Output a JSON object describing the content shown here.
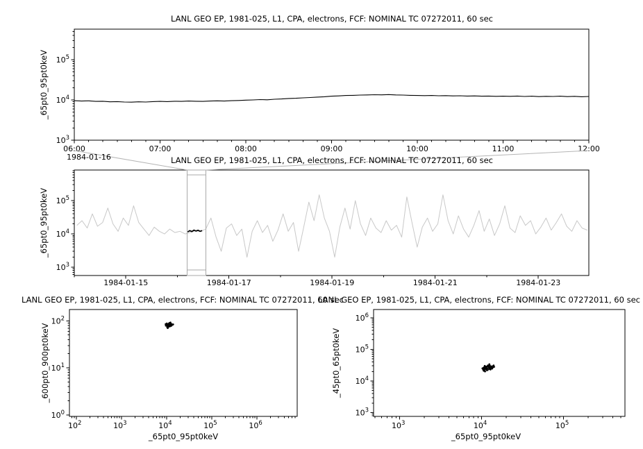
{
  "window": {
    "background": "#ffffff",
    "frame_color": "#000000"
  },
  "chart_data": [
    {
      "id": "top-timeseries",
      "type": "line",
      "title": "LANL GEO EP, 1981-025, L1, CPA, electrons, FCF: NOMINAL TC 07272011, 60 sec",
      "ylabel": "_65pt0_95pt0keV",
      "x_date_label": "1984-01-16",
      "x_tick_labels": [
        "06:00",
        "07:00",
        "08:00",
        "09:00",
        "10:00",
        "11:00",
        "12:00"
      ],
      "x_tick_values": [
        6,
        7,
        8,
        9,
        10,
        11,
        12
      ],
      "xlim": [
        6,
        12
      ],
      "ylog_range": [
        3,
        5.76
      ],
      "y_tick_exponents": [
        3,
        4,
        5
      ],
      "line_color": "#000000",
      "x_start": 6,
      "x_step": 0.0833333,
      "y": [
        9600,
        9400,
        9500,
        9200,
        9300,
        9000,
        9100,
        8900,
        8800,
        9000,
        8900,
        9100,
        9200,
        9100,
        9300,
        9200,
        9400,
        9300,
        9200,
        9400,
        9500,
        9400,
        9600,
        9700,
        9900,
        10000,
        10200,
        10100,
        10400,
        10600,
        10900,
        11000,
        11300,
        11500,
        11800,
        12000,
        12400,
        12600,
        12900,
        13000,
        13200,
        13300,
        13500,
        13400,
        13600,
        13300,
        13200,
        13000,
        12900,
        12800,
        12900,
        12700,
        12800,
        12600,
        12700,
        12500,
        12600,
        12400,
        12500,
        12300,
        12400,
        12300,
        12500,
        12200,
        12400,
        12100,
        12300,
        12200,
        12400,
        12100,
        12300,
        12000,
        12200
      ]
    },
    {
      "id": "context-overview",
      "type": "line",
      "title": "LANL GEO EP, 1981-025, L1, CPA, electrons, FCF: NOMINAL TC 07272011, 60 sec",
      "ylabel": "_65pt0_95pt0keV",
      "x_tick_labels": [
        "1984-01-15",
        "1984-01-17",
        "1984-01-19",
        "1984-01-21",
        "1984-01-23"
      ],
      "x_tick_values": [
        15,
        17,
        19,
        21,
        23
      ],
      "x_minor_tick_step": 1,
      "xlim": [
        14.0,
        23.98
      ],
      "ylog_range": [
        2.75,
        5.92
      ],
      "y_tick_exponents": [
        3,
        4,
        5
      ],
      "line_color": "#c8c8c8",
      "x_start": 14.05,
      "x_step": 0.1,
      "y": [
        18000,
        25000,
        15000,
        40000,
        17000,
        22000,
        60000,
        20000,
        12000,
        30000,
        18000,
        70000,
        22000,
        14000,
        9000,
        16000,
        12000,
        10000,
        14000,
        11000,
        12000,
        10000,
        11000,
        12500,
        12000,
        14000,
        30000,
        8000,
        3000,
        15000,
        20000,
        9000,
        14000,
        2000,
        12000,
        25000,
        11000,
        18000,
        6000,
        13000,
        40000,
        12000,
        22000,
        3000,
        16000,
        90000,
        25000,
        150000,
        30000,
        12000,
        2000,
        16000,
        60000,
        14000,
        100000,
        20000,
        9000,
        30000,
        15000,
        11000,
        25000,
        13000,
        18000,
        8000,
        130000,
        22000,
        4000,
        16000,
        30000,
        12000,
        20000,
        150000,
        25000,
        10000,
        35000,
        14000,
        8000,
        18000,
        50000,
        12000,
        28000,
        9000,
        20000,
        70000,
        15000,
        11000,
        35000,
        18000,
        25000,
        10000,
        16000,
        30000,
        13000,
        22000,
        40000,
        17000,
        12000,
        25000,
        15000,
        13000
      ],
      "highlight": {
        "color": "#000000",
        "x_start": 16.2,
        "x_step": 0.04,
        "y": [
          11500,
          12500,
          11800,
          13000,
          12200,
          12800,
          12000,
          12600
        ]
      },
      "selection_box": {
        "x0": 16.19,
        "x1": 16.55,
        "color": "#a8a8a8"
      }
    },
    {
      "id": "scatter-600-900",
      "type": "scatter",
      "title": "LANL GEO EP, 1981-025, L1, CPA, electrons, FCF: NOMINAL TC 07272011, 60 sec",
      "xlabel": "_65pt0_95pt0keV",
      "ylabel": "_600pt0_900pt0keV",
      "xlog_range": [
        1.85,
        6.89
      ],
      "ylog_range": [
        -0.03,
        2.24
      ],
      "x_tick_exponents": [
        2,
        3,
        4,
        5,
        6
      ],
      "y_tick_exponents": [
        0,
        1,
        2
      ],
      "marker_color": "#000000",
      "x": [
        9500,
        10200,
        11000,
        12000,
        10800,
        9800,
        11500,
        12500,
        10400,
        9900,
        11200,
        13000,
        12200,
        10600,
        11800,
        9700,
        10100,
        12800,
        11300,
        10900,
        13500,
        12400,
        10300,
        11700,
        9600,
        14000,
        12100,
        10700,
        11100,
        12600
      ],
      "y": [
        85,
        78,
        82,
        88,
        75,
        80,
        90,
        83,
        72,
        86,
        79,
        85,
        92,
        70,
        76,
        82,
        88,
        80,
        84,
        77,
        82,
        86,
        74,
        81,
        79,
        84,
        90,
        73,
        87,
        78
      ]
    },
    {
      "id": "scatter-45-65",
      "type": "scatter",
      "title": "LANL GEO EP, 1981-025, L1, CPA, electrons, FCF: NOMINAL TC 07272011, 60 sec",
      "xlabel": "_65pt0_95pt0keV",
      "ylabel": "_45pt0_65pt0keV",
      "xlog_range": [
        2.68,
        5.75
      ],
      "ylog_range": [
        2.88,
        6.26
      ],
      "x_tick_exponents": [
        3,
        4,
        5
      ],
      "y_tick_exponents": [
        3,
        4,
        5,
        6
      ],
      "marker_color": "#000000",
      "x": [
        10500,
        11200,
        12000,
        13000,
        11800,
        10800,
        12500,
        13500,
        11000,
        10200,
        12200,
        14000,
        12800,
        11500,
        10600,
        13200,
        12400,
        11300,
        10900,
        13800,
        12600,
        11700,
        10400,
        12900,
        14200,
        11900,
        10700,
        13400,
        12300,
        11600
      ],
      "y": [
        26000,
        24000,
        30000,
        27000,
        22000,
        28000,
        32000,
        26000,
        20000,
        25000,
        29000,
        31000,
        23000,
        27000,
        21000,
        28000,
        34000,
        25000,
        30000,
        27000,
        24000,
        29000,
        23000,
        26000,
        28000,
        31000,
        25500,
        24500,
        27500,
        22500
      ]
    }
  ]
}
